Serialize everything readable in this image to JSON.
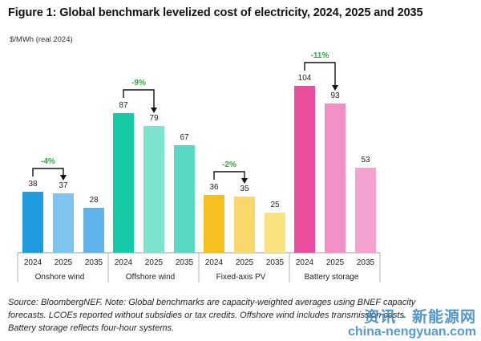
{
  "title": "Figure 1: Global benchmark levelized cost of electricity, 2024, 2025 and 2035",
  "unit_label": "$/MWh (real 2024)",
  "chart_data": {
    "type": "bar",
    "title": "Figure 1: Global benchmark levelized cost of electricity, 2024, 2025 and 2035",
    "ylabel": "$/MWh (real 2024)",
    "ylim": [
      0,
      130
    ],
    "grid": false,
    "years": [
      "2024",
      "2025",
      "2035"
    ],
    "groups": [
      {
        "name": "Onshore wind",
        "values": [
          38,
          37,
          28
        ],
        "change": "-4%",
        "colors": [
          "#1f9be0",
          "#7ec4ee",
          "#5fb3ea"
        ]
      },
      {
        "name": "Offshore wind",
        "values": [
          87,
          79,
          67
        ],
        "change": "-9%",
        "colors": [
          "#16c9a7",
          "#7de3cf",
          "#5ad8c2"
        ]
      },
      {
        "name": "Fixed-axis PV",
        "values": [
          36,
          35,
          25
        ],
        "change": "-2%",
        "colors": [
          "#f5bf1e",
          "#f8d86a",
          "#f9e27f"
        ]
      },
      {
        "name": "Battery storage",
        "values": [
          104,
          93,
          53
        ],
        "change": "-11%",
        "colors": [
          "#ea4c9e",
          "#f290c5",
          "#f4a3cf"
        ]
      }
    ],
    "change_color": "#2bab3f"
  },
  "source_lines": [
    "Source: BloombergNEF. Note: Global benchmarks are capacity-weighted averages using BNEF capacity",
    "forecasts. LCOEs reported without subsidies or tax credits. Offshore wind includes transmission costs.",
    "Battery storage reflects four-hour systems."
  ],
  "watermark": {
    "line1": "资讯 · 新能源网",
    "line2": "china-nengyuan.com"
  }
}
